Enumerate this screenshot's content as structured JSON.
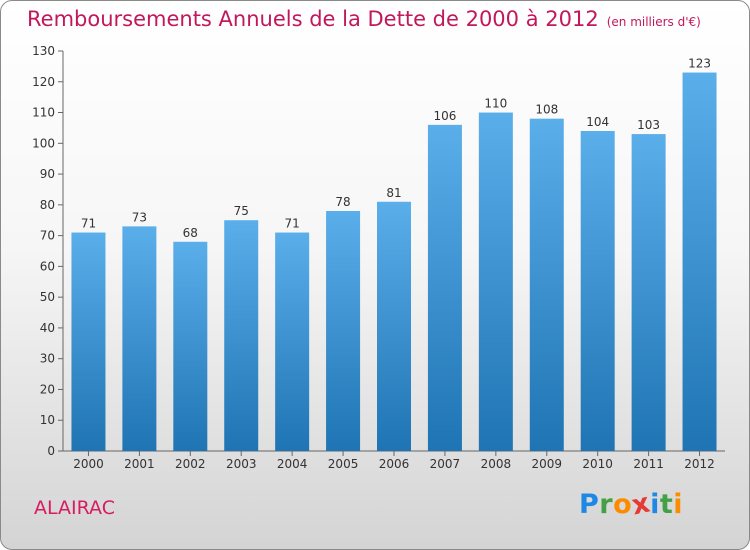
{
  "header": {
    "title": "Remboursements Annuels de la Dette de 2000 à 2012",
    "unit": "(en milliers d'€)"
  },
  "footer": {
    "commune": "ALAIRAC",
    "logo": [
      "P",
      "r",
      "o",
      "x",
      "i",
      "t",
      "i"
    ]
  },
  "colors": {
    "title": "#c2185b",
    "bar_top": "#5aaeea",
    "bar_bottom": "#1f74b3",
    "logo_letters": [
      "#1e88e5",
      "#43a047",
      "#fb8c00",
      "#e53935",
      "#1e88e5",
      "#43a047",
      "#fb8c00"
    ]
  },
  "chart_data": {
    "type": "bar",
    "title": "Remboursements Annuels de la Dette de 2000 à 2012",
    "categories": [
      "2000",
      "2001",
      "2002",
      "2003",
      "2004",
      "2005",
      "2006",
      "2007",
      "2008",
      "2009",
      "2010",
      "2011",
      "2012"
    ],
    "values": [
      71,
      73,
      68,
      75,
      71,
      78,
      81,
      106,
      110,
      108,
      104,
      103,
      123
    ],
    "yticks": [
      0,
      10,
      20,
      30,
      40,
      50,
      60,
      70,
      80,
      90,
      100,
      110,
      120,
      130
    ],
    "ylim": [
      0,
      130
    ],
    "grid": false,
    "legend": "none"
  }
}
